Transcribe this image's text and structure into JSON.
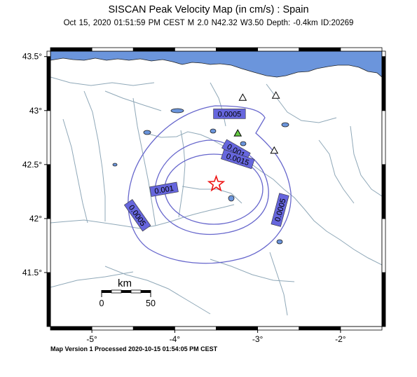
{
  "title": "SISCAN Peak Velocity Map (in cm/s) : Spain",
  "subtitle": "Oct 15, 2020 01:51:59 PM CEST   M 2.0   N42.32 W3.50   Depth: -0.4km   ID:20269",
  "footer": "Map Version 1 Processed 2020-10-15 01:54:05 PM CEST",
  "map": {
    "lon_range": [
      -5.5,
      -1.5
    ],
    "lat_range": [
      41.0,
      43.55
    ],
    "lat_ticks": [
      {
        "value": 43.5,
        "label": "43.5°"
      },
      {
        "value": 43.0,
        "label": "43°"
      },
      {
        "value": 42.5,
        "label": "42.5°"
      },
      {
        "value": 42.0,
        "label": "42°"
      },
      {
        "value": 41.5,
        "label": "41.5°"
      }
    ],
    "lon_ticks": [
      {
        "value": -5,
        "label": "-5°"
      },
      {
        "value": -4,
        "label": "-4°"
      },
      {
        "value": -3,
        "label": "-3°"
      },
      {
        "value": -2,
        "label": "-2°"
      }
    ],
    "colors": {
      "sea": "#6b95dc",
      "contour": "#6666cc",
      "label_fill": "#6666dd",
      "epicenter": "#ee1111",
      "river": "#8fa8b8",
      "station_green": "#66cc44"
    }
  },
  "epicenter": {
    "lon": -3.5,
    "lat": 42.32
  },
  "contour_labels": [
    {
      "text": "0.0005",
      "lon": -3.34,
      "lat": 42.97,
      "angle": 0
    },
    {
      "text": "0.001",
      "lon": -3.26,
      "lat": 42.63,
      "angle": 30
    },
    {
      "text": "0.0015",
      "lon": -3.24,
      "lat": 42.55,
      "angle": 18
    },
    {
      "text": "0.001",
      "lon": -4.13,
      "lat": 42.27,
      "angle": -10
    },
    {
      "text": "0.0005",
      "lon": -4.45,
      "lat": 42.03,
      "angle": 55
    },
    {
      "text": "0.0005",
      "lon": -2.73,
      "lat": 42.08,
      "angle": -75
    }
  ],
  "stations": [
    {
      "lon": -3.18,
      "lat": 43.12,
      "status": "open"
    },
    {
      "lon": -2.78,
      "lat": 43.14,
      "status": "open"
    },
    {
      "lon": -3.24,
      "lat": 42.79,
      "status": "felt"
    },
    {
      "lon": -2.8,
      "lat": 42.63,
      "status": "open"
    }
  ],
  "scalebar": {
    "title": "km",
    "min_label": "0",
    "max_label": "50"
  }
}
